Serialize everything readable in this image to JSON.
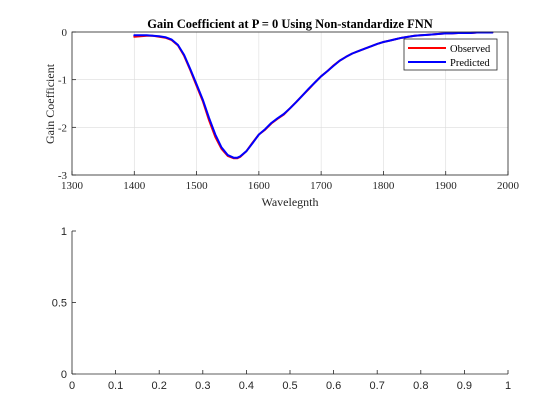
{
  "chart_data": [
    {
      "type": "line",
      "title": "Gain Coefficient at P = 0 Using Non-standardize FNN",
      "xlabel": "Wavelegnth",
      "ylabel": "Gain Coefficient",
      "xlim": [
        1300,
        2000
      ],
      "ylim": [
        -3,
        0
      ],
      "xticks": [
        "1300",
        "1400",
        "1500",
        "1600",
        "1700",
        "1800",
        "1900",
        "2000"
      ],
      "yticks": [
        "-3",
        "-2",
        "-1",
        "0"
      ],
      "grid": true,
      "legend_position": "top-right",
      "series": [
        {
          "name": "Observed",
          "color": "#ff0000",
          "x": [
            1400,
            1410,
            1420,
            1430,
            1440,
            1450,
            1460,
            1470,
            1480,
            1490,
            1500,
            1510,
            1520,
            1530,
            1540,
            1550,
            1560,
            1565,
            1570,
            1580,
            1590,
            1600,
            1610,
            1620,
            1630,
            1640,
            1650,
            1660,
            1670,
            1680,
            1690,
            1700,
            1710,
            1720,
            1730,
            1740,
            1750,
            1760,
            1770,
            1780,
            1790,
            1800,
            1810,
            1820,
            1830,
            1840,
            1850,
            1860,
            1870,
            1880,
            1890,
            1900,
            1910,
            1920,
            1930,
            1940,
            1950,
            1960,
            1970,
            1975
          ],
          "y": [
            -0.1,
            -0.09,
            -0.08,
            -0.08,
            -0.1,
            -0.12,
            -0.17,
            -0.28,
            -0.5,
            -0.8,
            -1.13,
            -1.45,
            -1.85,
            -2.2,
            -2.45,
            -2.6,
            -2.65,
            -2.65,
            -2.62,
            -2.5,
            -2.32,
            -2.15,
            -2.05,
            -1.92,
            -1.82,
            -1.73,
            -1.6,
            -1.47,
            -1.33,
            -1.2,
            -1.06,
            -0.93,
            -0.82,
            -0.7,
            -0.6,
            -0.52,
            -0.45,
            -0.4,
            -0.35,
            -0.3,
            -0.25,
            -0.21,
            -0.18,
            -0.15,
            -0.12,
            -0.1,
            -0.08,
            -0.07,
            -0.06,
            -0.05,
            -0.04,
            -0.03,
            -0.03,
            -0.02,
            -0.02,
            -0.02,
            -0.01,
            -0.01,
            -0.01,
            -0.01
          ]
        },
        {
          "name": "Predicted",
          "color": "#0000ff",
          "x": [
            1400,
            1410,
            1420,
            1430,
            1440,
            1450,
            1460,
            1470,
            1480,
            1490,
            1500,
            1510,
            1520,
            1530,
            1540,
            1550,
            1560,
            1565,
            1570,
            1580,
            1590,
            1600,
            1610,
            1620,
            1630,
            1640,
            1650,
            1660,
            1670,
            1680,
            1690,
            1700,
            1710,
            1720,
            1730,
            1740,
            1750,
            1760,
            1770,
            1780,
            1790,
            1800,
            1810,
            1820,
            1830,
            1840,
            1850,
            1860,
            1870,
            1880,
            1890,
            1900,
            1910,
            1920,
            1930,
            1940,
            1950,
            1960,
            1970,
            1975
          ],
          "y": [
            -0.07,
            -0.07,
            -0.07,
            -0.08,
            -0.09,
            -0.11,
            -0.16,
            -0.27,
            -0.48,
            -0.78,
            -1.1,
            -1.42,
            -1.8,
            -2.15,
            -2.42,
            -2.58,
            -2.64,
            -2.64,
            -2.61,
            -2.5,
            -2.33,
            -2.15,
            -2.04,
            -1.91,
            -1.81,
            -1.72,
            -1.6,
            -1.47,
            -1.33,
            -1.19,
            -1.06,
            -0.93,
            -0.82,
            -0.71,
            -0.6,
            -0.52,
            -0.45,
            -0.4,
            -0.35,
            -0.3,
            -0.25,
            -0.21,
            -0.18,
            -0.15,
            -0.12,
            -0.1,
            -0.08,
            -0.07,
            -0.06,
            -0.05,
            -0.04,
            -0.03,
            -0.03,
            -0.02,
            -0.02,
            -0.02,
            -0.01,
            -0.01,
            -0.01,
            -0.01
          ]
        }
      ]
    },
    {
      "type": "line",
      "title": "",
      "xlabel": "",
      "ylabel": "",
      "xlim": [
        0,
        1
      ],
      "ylim": [
        0,
        1
      ],
      "xticks": [
        "0",
        "0.1",
        "0.2",
        "0.3",
        "0.4",
        "0.5",
        "0.6",
        "0.7",
        "0.8",
        "0.9",
        "1"
      ],
      "yticks": [
        "0",
        "0.5",
        "1"
      ],
      "grid": false,
      "series": []
    }
  ]
}
